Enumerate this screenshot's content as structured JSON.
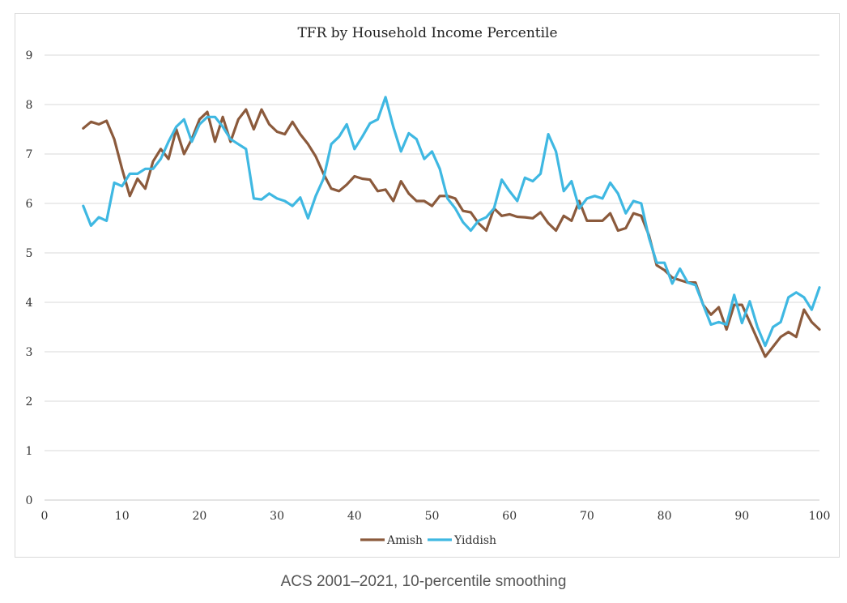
{
  "caption": "ACS 2001–2021, 10-percentile smoothing",
  "chart_data": {
    "type": "line",
    "title": "TFR by Household Income Percentile",
    "xlabel": "",
    "ylabel": "",
    "xlim": [
      0,
      100
    ],
    "ylim": [
      0,
      9
    ],
    "xticks": [
      0,
      10,
      20,
      30,
      40,
      50,
      60,
      70,
      80,
      90,
      100
    ],
    "yticks": [
      0,
      1,
      2,
      3,
      4,
      5,
      6,
      7,
      8,
      9
    ],
    "grid": "horizontal",
    "legend_position": "bottom",
    "x": [
      5,
      6,
      7,
      8,
      9,
      10,
      11,
      12,
      13,
      14,
      15,
      16,
      17,
      18,
      19,
      20,
      21,
      22,
      23,
      24,
      25,
      26,
      27,
      28,
      29,
      30,
      31,
      32,
      33,
      34,
      35,
      36,
      37,
      38,
      39,
      40,
      41,
      42,
      43,
      44,
      45,
      46,
      47,
      48,
      49,
      50,
      51,
      52,
      53,
      54,
      55,
      56,
      57,
      58,
      59,
      60,
      61,
      62,
      63,
      64,
      65,
      66,
      67,
      68,
      69,
      70,
      71,
      72,
      73,
      74,
      75,
      76,
      77,
      78,
      79,
      80,
      81,
      82,
      83,
      84,
      85,
      86,
      87,
      88,
      89,
      90,
      91,
      92,
      93,
      94,
      95,
      96,
      97,
      98,
      99,
      100
    ],
    "series": [
      {
        "name": "Amish",
        "color": "#8B5A3C",
        "values": [
          7.52,
          7.65,
          7.6,
          7.67,
          7.3,
          6.7,
          6.15,
          6.5,
          6.3,
          6.85,
          7.1,
          6.9,
          7.5,
          7.0,
          7.3,
          7.7,
          7.85,
          7.25,
          7.75,
          7.25,
          7.7,
          7.9,
          7.5,
          7.9,
          7.6,
          7.45,
          7.4,
          7.65,
          7.4,
          7.2,
          6.95,
          6.6,
          6.3,
          6.25,
          6.38,
          6.55,
          6.5,
          6.48,
          6.25,
          6.28,
          6.05,
          6.45,
          6.2,
          6.05,
          6.05,
          5.95,
          6.15,
          6.15,
          6.1,
          5.85,
          5.82,
          5.6,
          5.45,
          5.9,
          5.75,
          5.78,
          5.73,
          5.72,
          5.7,
          5.82,
          5.6,
          5.45,
          5.75,
          5.65,
          6.05,
          5.65,
          5.65,
          5.65,
          5.8,
          5.45,
          5.5,
          5.8,
          5.75,
          5.35,
          4.75,
          4.65,
          4.5,
          4.45,
          4.4,
          4.4,
          3.95,
          3.75,
          3.9,
          3.45,
          3.95,
          3.95,
          3.6,
          3.25,
          2.9,
          3.1,
          3.3,
          3.4,
          3.3,
          3.85,
          3.6,
          3.45
        ]
      },
      {
        "name": "Yiddish",
        "color": "#3FB8E2",
        "values": [
          5.95,
          5.55,
          5.72,
          5.65,
          6.42,
          6.35,
          6.6,
          6.6,
          6.7,
          6.7,
          6.9,
          7.25,
          7.55,
          7.7,
          7.25,
          7.6,
          7.75,
          7.75,
          7.55,
          7.3,
          7.2,
          7.1,
          6.1,
          6.08,
          6.2,
          6.1,
          6.05,
          5.95,
          6.12,
          5.7,
          6.15,
          6.5,
          7.2,
          7.35,
          7.6,
          7.1,
          7.35,
          7.62,
          7.7,
          8.15,
          7.55,
          7.05,
          7.42,
          7.3,
          6.9,
          7.05,
          6.7,
          6.1,
          5.9,
          5.62,
          5.45,
          5.65,
          5.72,
          5.9,
          6.48,
          6.25,
          6.05,
          6.52,
          6.45,
          6.6,
          7.4,
          7.05,
          6.25,
          6.45,
          5.9,
          6.1,
          6.15,
          6.1,
          6.42,
          6.2,
          5.8,
          6.05,
          6.0,
          5.3,
          4.8,
          4.8,
          4.38,
          4.68,
          4.4,
          4.35,
          3.95,
          3.55,
          3.6,
          3.55,
          4.15,
          3.58,
          4.02,
          3.5,
          3.12,
          3.5,
          3.6,
          4.1,
          4.2,
          4.1,
          3.85,
          4.3
        ]
      }
    ]
  }
}
